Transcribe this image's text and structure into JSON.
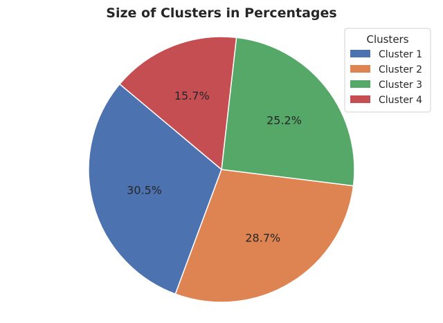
{
  "chart_data": {
    "type": "pie",
    "title": "Size of Clusters in Percentages",
    "legend": {
      "title": "Clusters",
      "placement": "top-right"
    },
    "slices": [
      {
        "label": "Cluster 1",
        "value": 30.5,
        "value_label": "30.5%",
        "color": "#4c72b0"
      },
      {
        "label": "Cluster 2",
        "value": 28.7,
        "value_label": "28.7%",
        "color": "#dd8452"
      },
      {
        "label": "Cluster 3",
        "value": 25.2,
        "value_label": "25.2%",
        "color": "#55a868"
      },
      {
        "label": "Cluster 4",
        "value": 15.7,
        "value_label": "15.7%",
        "color": "#c44e52"
      }
    ]
  }
}
